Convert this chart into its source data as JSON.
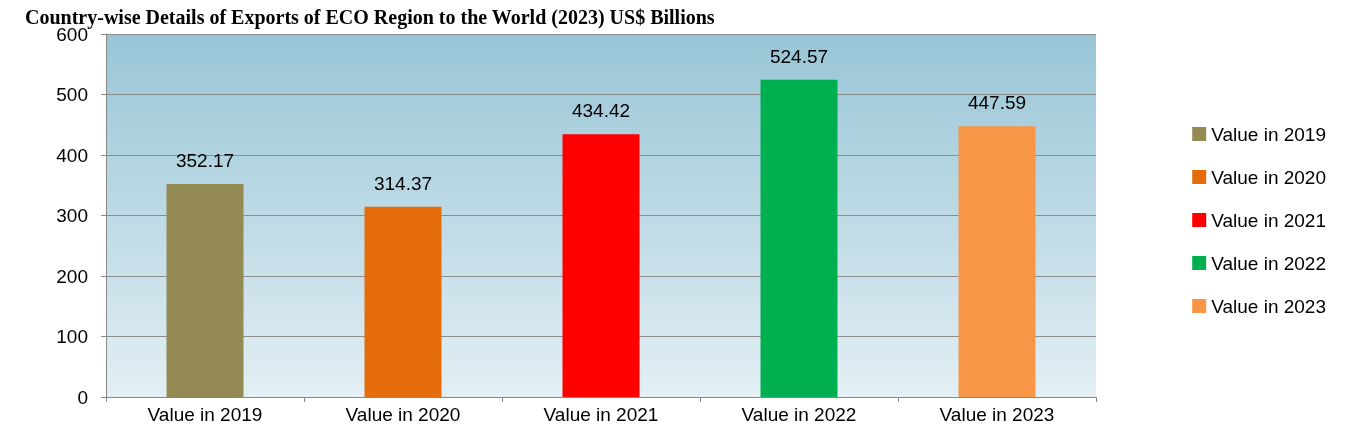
{
  "chart_data": {
    "type": "bar",
    "title": "Country-wise Details of Exports of ECO Region to the World (2023) US$ Billions",
    "categories": [
      "Value in 2019",
      "Value in 2020",
      "Value in 2021",
      "Value in 2022",
      "Value in 2023"
    ],
    "series": [
      {
        "name": "Value in 2019",
        "color": "#948a54",
        "values": [
          352.17,
          null,
          null,
          null,
          null
        ]
      },
      {
        "name": "Value in 2020",
        "color": "#e46c0a",
        "values": [
          null,
          314.37,
          null,
          null,
          null
        ]
      },
      {
        "name": "Value in 2021",
        "color": "#ff0000",
        "values": [
          null,
          null,
          434.42,
          null,
          null
        ]
      },
      {
        "name": "Value in 2022",
        "color": "#00b050",
        "values": [
          null,
          null,
          null,
          524.57,
          null
        ]
      },
      {
        "name": "Value in 2023",
        "color": "#f79646",
        "values": [
          null,
          null,
          null,
          null,
          447.59
        ]
      }
    ],
    "stacked": true,
    "ylim": [
      0,
      600
    ],
    "yticks": [
      0,
      100,
      200,
      300,
      400,
      500,
      600
    ],
    "grid": "y",
    "legend": "right",
    "data_labels": true
  }
}
